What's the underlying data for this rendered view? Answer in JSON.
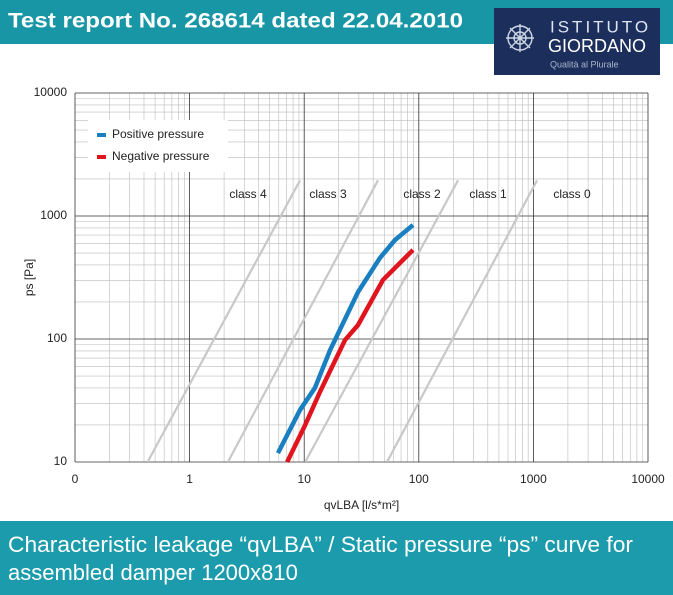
{
  "header": {
    "title": "Test report No. 268614 dated 22.04.2010"
  },
  "logo": {
    "line1": "ISTITUTO",
    "line2": "GIORDANO",
    "line3": "Qualità al Plurale"
  },
  "chart_data": {
    "type": "line",
    "xlabel": "qvLBA [l/s*m²]",
    "ylabel": "ps [Pa]",
    "xlog": true,
    "ylog": true,
    "grid": true,
    "legend": "upper left",
    "xlim": [
      0.1,
      10000
    ],
    "xticks": [
      {
        "value": 0.1,
        "label": "0"
      },
      1,
      10,
      100,
      1000,
      10000
    ],
    "ylim": [
      10,
      10000
    ],
    "yticks": [
      10,
      100,
      1000,
      10000
    ],
    "series": [
      {
        "name": "Positive pressure",
        "color": "#1a7fc1",
        "x": [
          5.9,
          9.2,
          12.4,
          16.8,
          29.5,
          45.8,
          62,
          89
        ],
        "values": [
          11.8,
          26.5,
          40,
          81,
          241,
          456,
          638,
          845
        ]
      },
      {
        "name": "Negative pressure",
        "color": "#e0141e",
        "x": [
          7.1,
          10.2,
          13.7,
          22.7,
          29.5,
          48.7,
          89
        ],
        "values": [
          10,
          20,
          37,
          98,
          130,
          302,
          530
        ]
      }
    ],
    "class_labels": [
      "class 4",
      "class 3",
      "class 2",
      "class 1",
      "class 0"
    ],
    "class_lines": [
      {
        "x": [
          0.43,
          9.2
        ],
        "y": [
          10,
          1950
        ]
      },
      {
        "x": [
          2.16,
          44
        ],
        "y": [
          10,
          1950
        ]
      },
      {
        "x": [
          10.2,
          220
        ],
        "y": [
          10,
          1950
        ]
      },
      {
        "x": [
          52.8,
          1075
        ],
        "y": [
          10,
          1950
        ]
      }
    ]
  },
  "caption": {
    "lines": [
      "Characteristic leakage “qvLBA” / Static pressure “ps” curve for",
      "assembled damper 1200x810"
    ]
  }
}
